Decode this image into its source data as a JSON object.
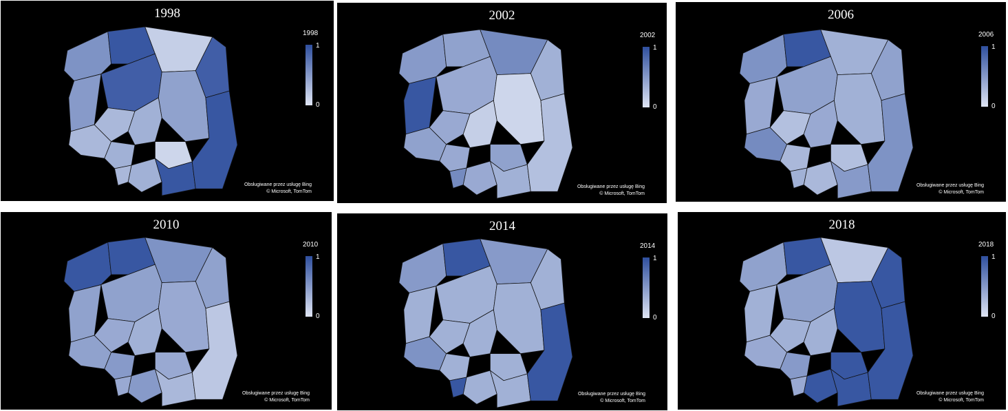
{
  "panels": [
    {
      "title": "1998",
      "legend_title": "1998",
      "legend_max": "1",
      "legend_min": "0",
      "attribution_line1": "Obsługiwane przez usługę Bing",
      "attribution_line2": "© Microsoft, TomTom",
      "region_values": [
        0.55,
        0.95,
        0.15,
        0.9,
        0.5,
        0.9,
        0.45,
        0.35,
        0.3,
        0.3,
        0.35,
        0.1,
        0.35,
        0.3,
        0.95,
        0.95
      ]
    },
    {
      "title": "2002",
      "legend_title": "2002",
      "legend_max": "1",
      "legend_min": "0",
      "attribution_line1": "Obsługiwane przez usługę Bing",
      "attribution_line2": "© Microsoft, TomTom",
      "region_values": [
        0.5,
        0.45,
        0.6,
        0.35,
        0.95,
        0.4,
        0.1,
        0.15,
        0.45,
        0.4,
        0.4,
        0.45,
        0.4,
        0.6,
        0.35,
        0.25
      ]
    },
    {
      "title": "2006",
      "legend_title": "2006",
      "legend_max": "1",
      "legend_min": "0",
      "attribution_line1": "Obsługiwane przez usługę Bing",
      "attribution_line2": "© Microsoft, TomTom",
      "region_values": [
        0.55,
        0.95,
        0.35,
        0.45,
        0.4,
        0.45,
        0.35,
        0.4,
        0.6,
        0.25,
        0.3,
        0.25,
        0.3,
        0.35,
        0.5,
        0.55
      ]
    },
    {
      "title": "2010",
      "legend_title": "2010",
      "legend_max": "1",
      "legend_min": "0",
      "attribution_line1": "Obsługiwane przez usługę Bing",
      "attribution_line2": "© Microsoft, TomTom",
      "region_values": [
        0.95,
        0.95,
        0.55,
        0.45,
        0.45,
        0.45,
        0.4,
        0.35,
        0.45,
        0.4,
        0.5,
        0.4,
        0.5,
        0.4,
        0.3,
        0.2
      ]
    },
    {
      "title": "2014",
      "legend_title": "2014",
      "legend_max": "1",
      "legend_min": "0",
      "attribution_line1": "Obsługiwane przez usługę Bing",
      "attribution_line2": "© Microsoft, TomTom",
      "region_values": [
        0.5,
        0.95,
        0.5,
        0.35,
        0.35,
        0.35,
        0.35,
        0.35,
        0.55,
        0.35,
        0.35,
        0.35,
        0.35,
        0.95,
        0.35,
        0.95
      ]
    },
    {
      "title": "2018",
      "legend_title": "2018",
      "legend_max": "1",
      "legend_min": "0",
      "attribution_line1": "Obsługiwane przez usługę Bing",
      "attribution_line2": "© Microsoft, TomTom",
      "region_values": [
        0.45,
        0.95,
        0.2,
        0.95,
        0.35,
        0.45,
        0.95,
        0.35,
        0.4,
        0.35,
        0.5,
        0.95,
        0.95,
        0.4,
        0.95,
        0.95
      ]
    }
  ],
  "colors": {
    "low": "#dfe5f4",
    "high": "#2f4f9e",
    "background": "#000000",
    "text": "#ffffff"
  }
}
